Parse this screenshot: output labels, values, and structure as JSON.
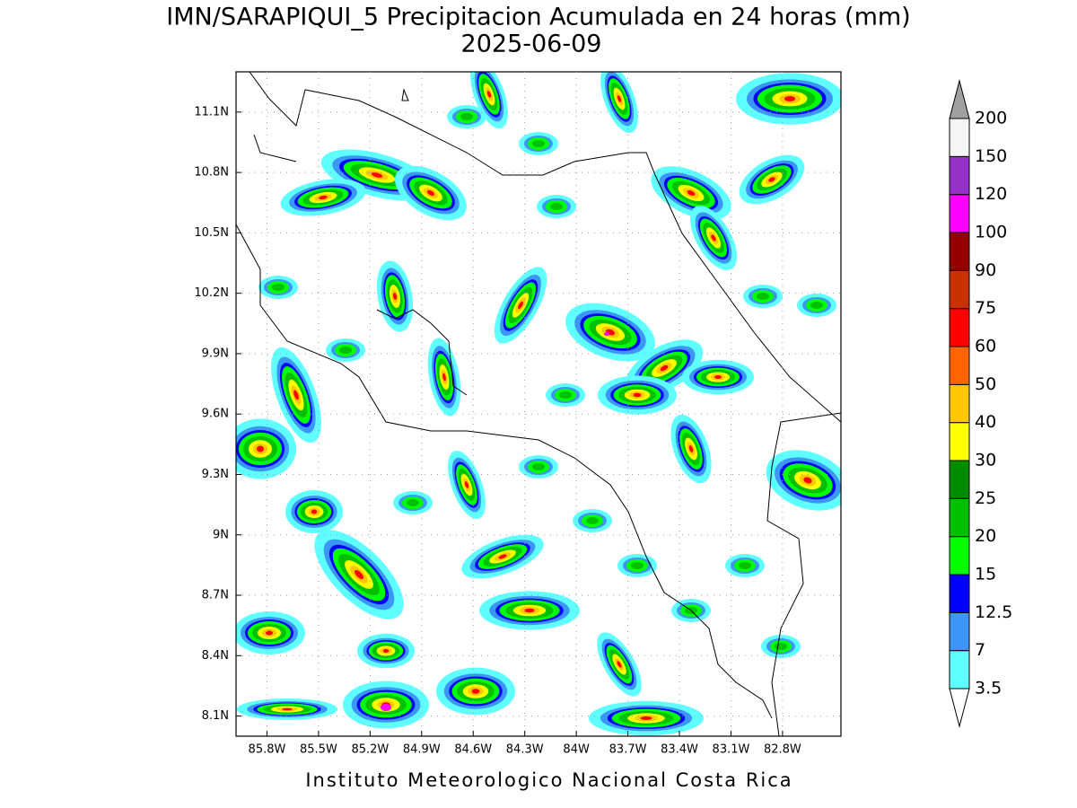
{
  "title": "IMN/SARAPIQUI_5 Precipitacion Acumulada en 24 horas (mm)",
  "subtitle": "2025-06-09",
  "map": {
    "type": "contour-map",
    "xlim": [
      -85.98,
      -82.46
    ],
    "ylim": [
      8.0,
      11.3
    ],
    "xticks": [
      {
        "value": -85.8,
        "label": "85.8W"
      },
      {
        "value": -85.5,
        "label": "85.5W"
      },
      {
        "value": -85.2,
        "label": "85.2W"
      },
      {
        "value": -84.9,
        "label": "84.9W"
      },
      {
        "value": -84.6,
        "label": "84.6W"
      },
      {
        "value": -84.3,
        "label": "84.3W"
      },
      {
        "value": -84.0,
        "label": "84W"
      },
      {
        "value": -83.7,
        "label": "83.7W"
      },
      {
        "value": -83.4,
        "label": "83.4W"
      },
      {
        "value": -83.1,
        "label": "83.1W"
      },
      {
        "value": -82.8,
        "label": "82.8W"
      }
    ],
    "yticks": [
      {
        "value": 8.1,
        "label": "8.1N"
      },
      {
        "value": 8.4,
        "label": "8.4N"
      },
      {
        "value": 8.7,
        "label": "8.7N"
      },
      {
        "value": 9.0,
        "label": "9N"
      },
      {
        "value": 9.3,
        "label": "9.3N"
      },
      {
        "value": 9.6,
        "label": "9.6N"
      },
      {
        "value": 9.9,
        "label": "9.9N"
      },
      {
        "value": 10.2,
        "label": "10.2N"
      },
      {
        "value": 10.5,
        "label": "10.5N"
      },
      {
        "value": 10.8,
        "label": "10.8N"
      },
      {
        "value": 11.1,
        "label": "11.1N"
      }
    ],
    "grid": true
  },
  "colorbar": {
    "levels": [
      3.5,
      7,
      12.5,
      15,
      20,
      25,
      30,
      40,
      50,
      60,
      75,
      90,
      100,
      120,
      150,
      200
    ],
    "colors": [
      "#ffffff",
      "#60ffff",
      "#3c96f5",
      "#0000ff",
      "#00ff00",
      "#00c000",
      "#008c00",
      "#ffff00",
      "#ffc800",
      "#ff6400",
      "#ff0000",
      "#c83200",
      "#960000",
      "#ff00ff",
      "#9632c8",
      "#f5f5f5",
      "#a0a0a0"
    ]
  },
  "footer": "Instituto Meteorologico Nacional Costa Rica"
}
